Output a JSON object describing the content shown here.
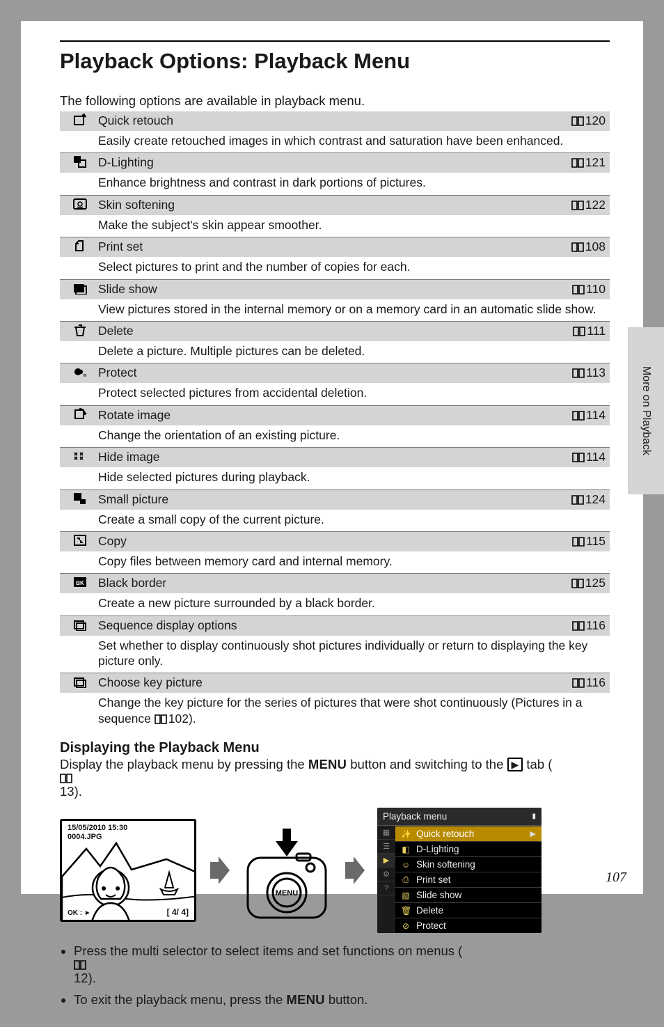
{
  "title": "Playback Options: Playback Menu",
  "intro": "The following options are available in playback menu.",
  "side_tab": "More on Playback",
  "page_number": "107",
  "options": [
    {
      "name": "Quick retouch",
      "page": "120",
      "desc": "Easily create retouched images in which contrast and saturation have been enhanced."
    },
    {
      "name": "D-Lighting",
      "page": "121",
      "desc": "Enhance brightness and contrast in dark portions of pictures."
    },
    {
      "name": "Skin softening",
      "page": "122",
      "desc": "Make the subject's skin appear smoother."
    },
    {
      "name": "Print set",
      "page": "108",
      "desc": "Select pictures to print and the number of copies for each."
    },
    {
      "name": "Slide show",
      "page": "110",
      "desc": "View pictures stored in the internal memory or on a memory card in an automatic slide show."
    },
    {
      "name": "Delete",
      "page": "111",
      "desc": "Delete a picture. Multiple pictures can be deleted."
    },
    {
      "name": "Protect",
      "page": "113",
      "desc": "Protect selected pictures from accidental deletion."
    },
    {
      "name": "Rotate image",
      "page": "114",
      "desc": "Change the orientation of an existing picture."
    },
    {
      "name": "Hide image",
      "page": "114",
      "desc": "Hide selected pictures during playback."
    },
    {
      "name": "Small picture",
      "page": "124",
      "desc": "Create a small copy of the current picture."
    },
    {
      "name": "Copy",
      "page": "115",
      "desc": "Copy files between memory card and internal memory."
    },
    {
      "name": "Black border",
      "page": "125",
      "desc": "Create a new picture surrounded by a black border."
    },
    {
      "name": "Sequence display options",
      "page": "116",
      "desc": "Set whether to display continuously shot pictures individually or return to displaying the key picture only."
    },
    {
      "name": "Choose key picture",
      "page": "116",
      "desc": "Change the key picture for the series of pictures that were shot continuously (Pictures in a sequence 📖102)."
    }
  ],
  "subtitle": "Displaying the Playback Menu",
  "sub_intro_1": "Display the playback menu by pressing the ",
  "sub_intro_menu": "MENU",
  "sub_intro_2": " button and switching to the ",
  "sub_intro_tab": "▶",
  "sub_intro_3": " tab (",
  "sub_intro_page": "13",
  "sub_intro_4": ").",
  "lcd": {
    "timestamp": "15/05/2010 15:30",
    "filename": "0004.JPG",
    "counter": "4/  4",
    "bottom": "OK : ►"
  },
  "menu_panel": {
    "title": "Playback menu",
    "items": [
      {
        "label": "Quick retouch",
        "selected": true
      },
      {
        "label": "D-Lighting",
        "selected": false
      },
      {
        "label": "Skin softening",
        "selected": false
      },
      {
        "label": "Print set",
        "selected": false
      },
      {
        "label": "Slide show",
        "selected": false
      },
      {
        "label": "Delete",
        "selected": false
      },
      {
        "label": "Protect",
        "selected": false
      }
    ]
  },
  "bullets": [
    {
      "pre": "Press the multi selector to select items and set functions on menus (",
      "page": "12",
      "post": ")."
    },
    {
      "pre": "To exit the playback menu, press the ",
      "menu": "MENU",
      "post": " button."
    }
  ]
}
